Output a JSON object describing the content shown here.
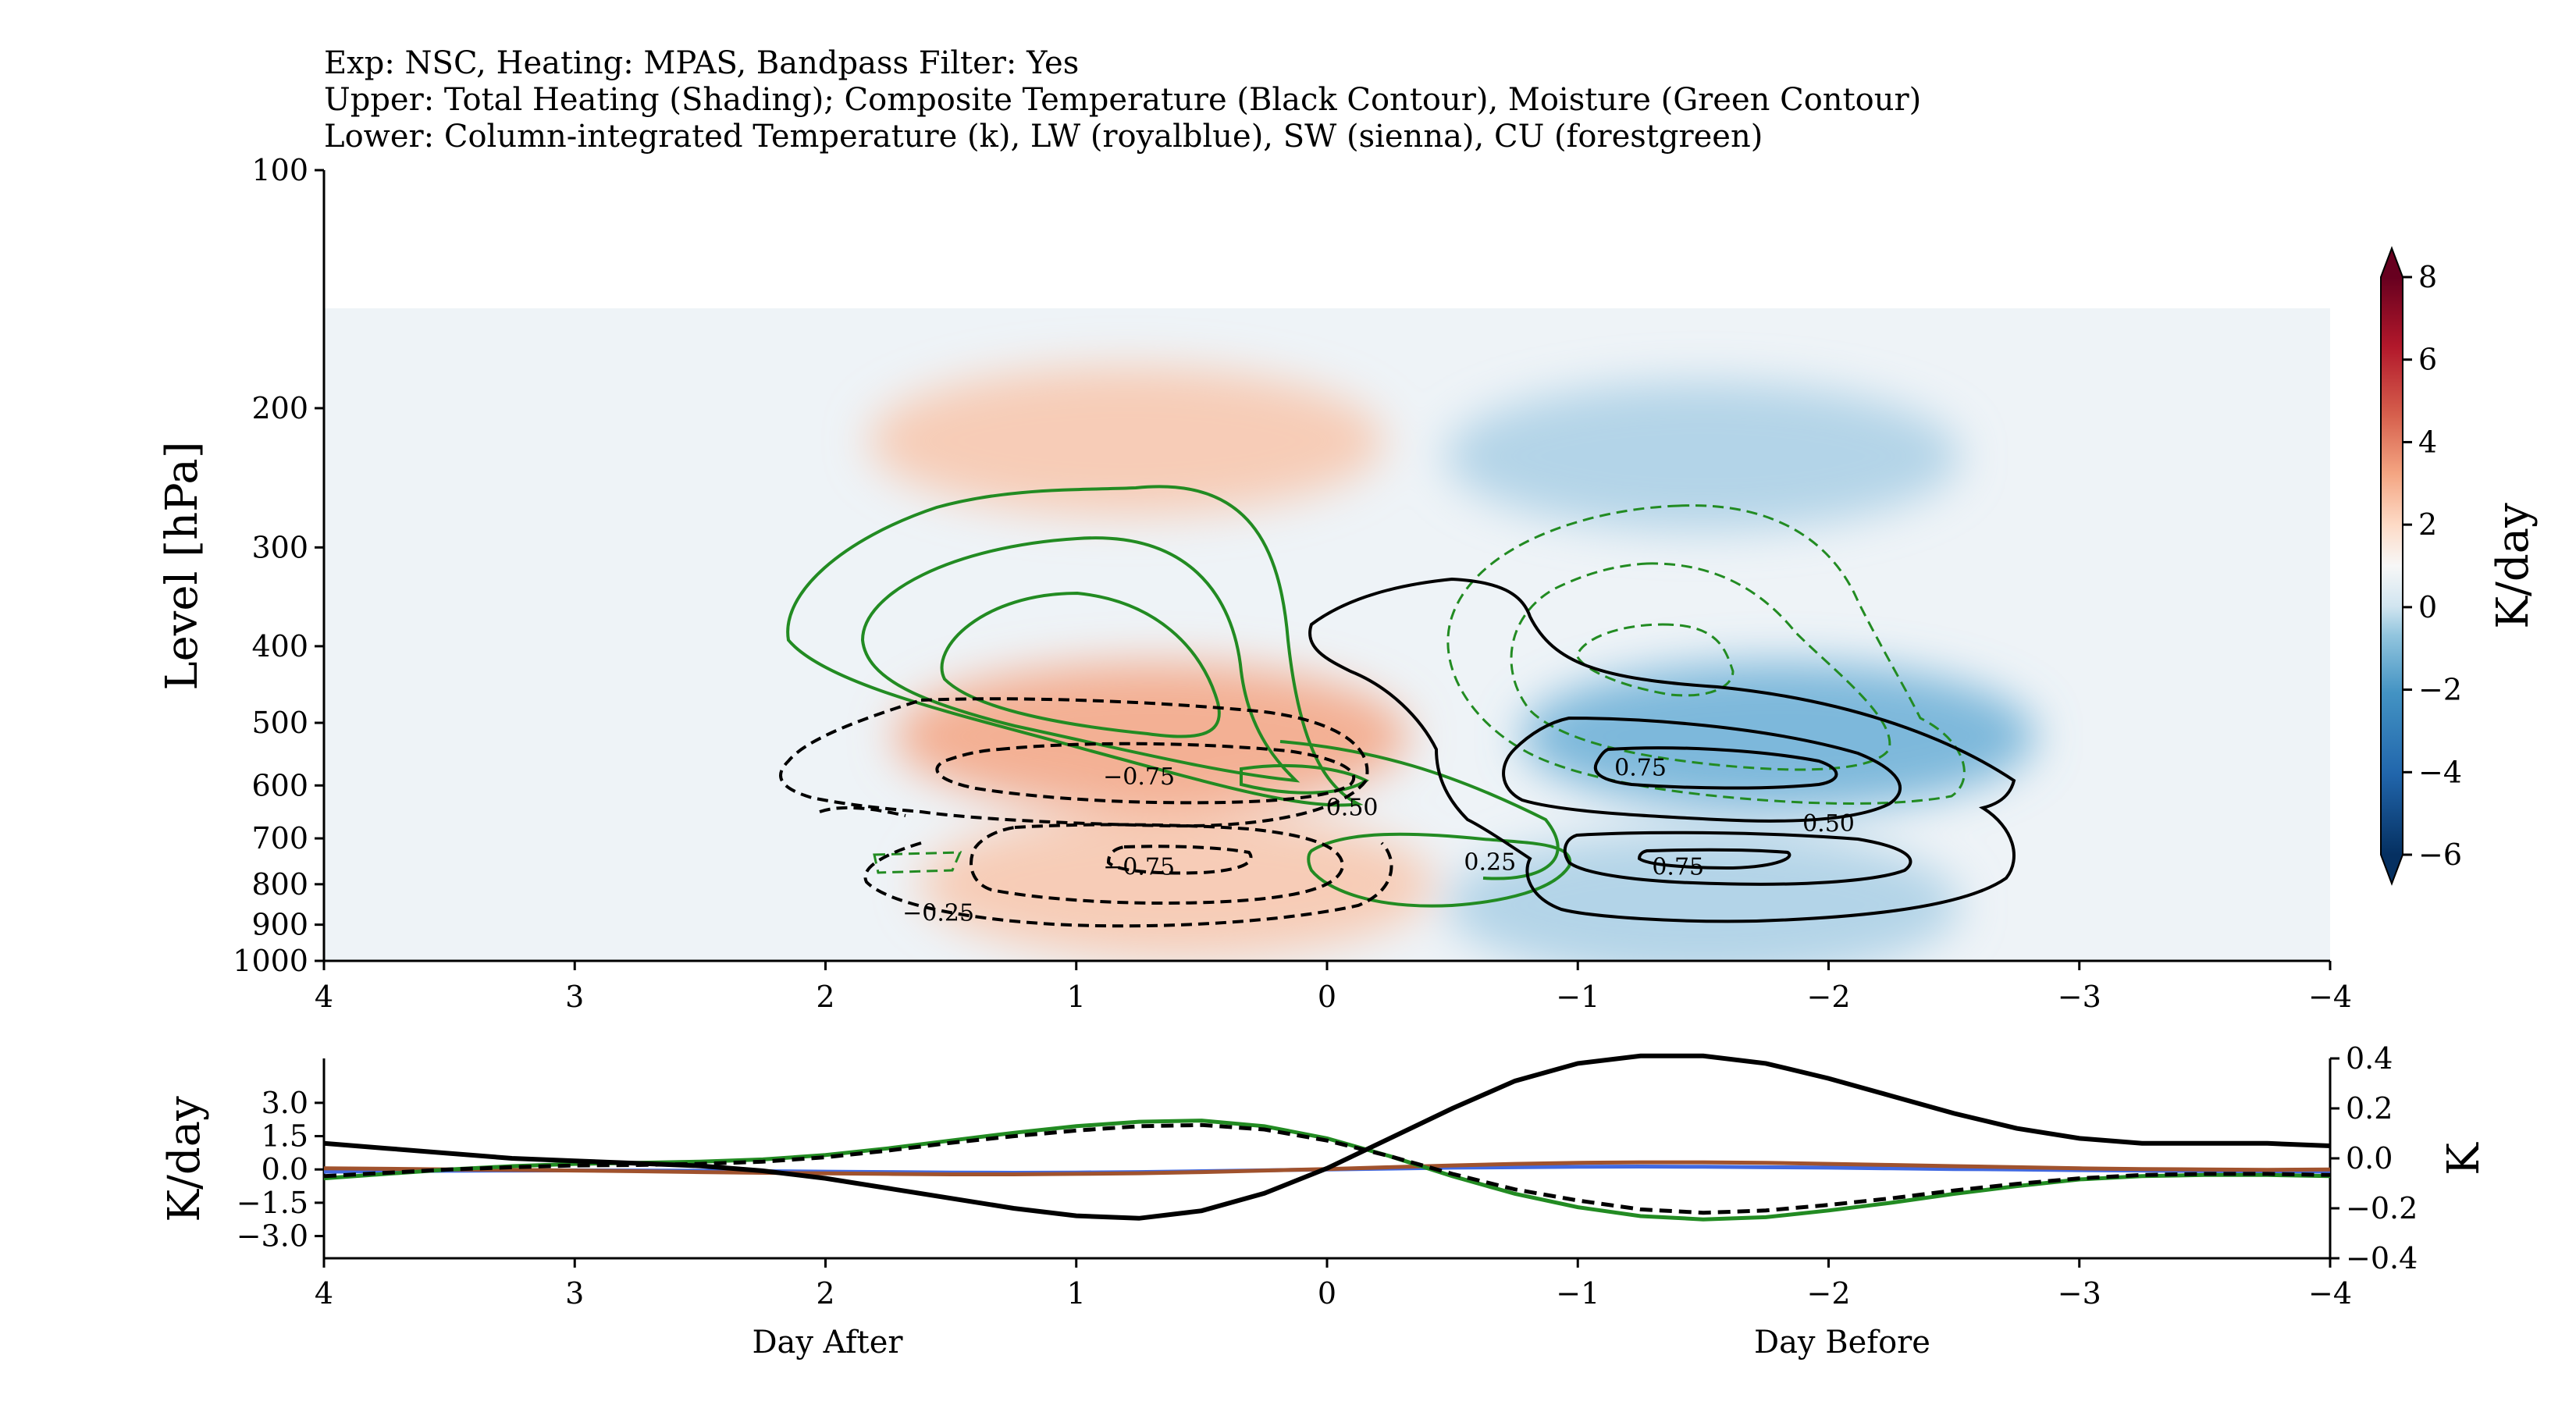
{
  "title_lines": [
    "Exp: NSC, Heating: MPAS, Bandpass Filter: Yes",
    "Upper: Total Heating (Shading); Composite Temperature (Black Contour), Moisture (Green Contour)",
    "Lower: Column-integrated Temperature (k), LW (royalblue), SW (sienna), CU (forestgreen)"
  ],
  "chart_data": [
    {
      "type": "heatmap",
      "name": "upper-panel",
      "ylabel": "Level [hPa]",
      "y_ticks": [
        "100",
        "200",
        "300",
        "400",
        "500",
        "600",
        "700",
        "800",
        "900",
        "1000"
      ],
      "x_ticks": [
        "4",
        "3",
        "2",
        "1",
        "0",
        "−1",
        "−2",
        "−3",
        "−4"
      ],
      "xlim": [
        4,
        -4
      ],
      "ylim": [
        1000,
        100
      ],
      "colorbar": {
        "label": "K/day",
        "ticks": [
          "8",
          "6",
          "4",
          "2",
          "0",
          "−2",
          "−4",
          "−6"
        ],
        "range": [
          -6,
          8
        ],
        "extend": "both",
        "colormap": "RdBu_r"
      },
      "heating_features": [
        {
          "kind": "warm",
          "center_day": 0.8,
          "center_hpa": 220,
          "peak": 2.0
        },
        {
          "kind": "warm",
          "center_day": 0.7,
          "center_hpa": 520,
          "peak": 2.5
        },
        {
          "kind": "warm",
          "center_day": 0.6,
          "center_hpa": 800,
          "peak": 1.5
        },
        {
          "kind": "cool",
          "center_day": -1.5,
          "center_hpa": 230,
          "peak": -2.0
        },
        {
          "kind": "cool",
          "center_day": -1.8,
          "center_hpa": 520,
          "peak": -3.0
        },
        {
          "kind": "cool",
          "center_day": -1.5,
          "center_hpa": 850,
          "peak": -1.5
        }
      ],
      "contour_labels": [
        {
          "text": "−0.75",
          "day": 0.75,
          "hpa": 585
        },
        {
          "text": "0.50",
          "day": -0.1,
          "hpa": 640
        },
        {
          "text": "−0.75",
          "day": 0.75,
          "hpa": 760
        },
        {
          "text": "−0.25",
          "day": 1.55,
          "hpa": 870
        },
        {
          "text": "0.25",
          "day": -0.65,
          "hpa": 750
        },
        {
          "text": "0.75",
          "day": -1.25,
          "hpa": 570
        },
        {
          "text": "0.50",
          "day": -2.0,
          "hpa": 670
        },
        {
          "text": "0.75",
          "day": -1.4,
          "hpa": 760
        }
      ]
    },
    {
      "type": "line",
      "name": "lower-panel",
      "ylabel_left": "K/day",
      "ylabel_right": "K",
      "y_ticks_left": [
        "3.0",
        "1.5",
        "0.0",
        "−1.5",
        "−3.0"
      ],
      "y_ticks_right": [
        "0.4",
        "0.2",
        "0.0",
        "−0.2",
        "−0.4"
      ],
      "x_ticks": [
        "4",
        "3",
        "2",
        "1",
        "0",
        "−1",
        "−2",
        "−3",
        "−4"
      ],
      "xlabel_left": "Day After",
      "xlabel_right": "Day Before",
      "xlim": [
        4,
        -4
      ],
      "ylim_left": [
        -4.0,
        5.0
      ],
      "ylim_right": [
        -0.4,
        0.4
      ],
      "x": [
        4,
        3.75,
        3.5,
        3.25,
        3,
        2.75,
        2.5,
        2.25,
        2,
        1.75,
        1.5,
        1.25,
        1,
        0.75,
        0.5,
        0.25,
        0,
        -0.25,
        -0.5,
        -0.75,
        -1,
        -1.25,
        -1.5,
        -1.75,
        -2,
        -2.25,
        -2.5,
        -2.75,
        -3,
        -3.25,
        -3.5,
        -3.75,
        -4
      ],
      "series": [
        {
          "name": "",
          "color": "#4169e1",
          "axis": "left",
          "values": [
            -0.1,
            -0.08,
            -0.06,
            -0.05,
            -0.04,
            -0.05,
            -0.06,
            -0.08,
            -0.1,
            -0.12,
            -0.14,
            -0.15,
            -0.14,
            -0.12,
            -0.08,
            -0.04,
            0.0,
            0.04,
            0.08,
            0.1,
            0.12,
            0.13,
            0.12,
            0.1,
            0.08,
            0.05,
            0.02,
            0.0,
            -0.03,
            -0.05,
            -0.07,
            -0.08,
            -0.1
          ]
        },
        {
          "name": "",
          "color": "#a0522d",
          "axis": "left",
          "values": [
            0.05,
            0.03,
            0.0,
            -0.02,
            -0.05,
            -0.08,
            -0.12,
            -0.15,
            -0.18,
            -0.2,
            -0.22,
            -0.22,
            -0.2,
            -0.17,
            -0.12,
            -0.05,
            0.02,
            0.1,
            0.18,
            0.25,
            0.3,
            0.32,
            0.32,
            0.3,
            0.25,
            0.2,
            0.15,
            0.1,
            0.05,
            0.02,
            0.0,
            -0.02,
            0.0
          ]
        },
        {
          "name": "",
          "color": "#228b22",
          "axis": "left",
          "values": [
            -0.4,
            -0.2,
            0.0,
            0.15,
            0.25,
            0.3,
            0.35,
            0.45,
            0.65,
            0.95,
            1.3,
            1.65,
            1.95,
            2.15,
            2.2,
            1.95,
            1.4,
            0.6,
            -0.3,
            -1.1,
            -1.7,
            -2.1,
            -2.25,
            -2.15,
            -1.85,
            -1.5,
            -1.1,
            -0.75,
            -0.45,
            -0.3,
            -0.25,
            -0.25,
            -0.3
          ]
        },
        {
          "name": "",
          "color": "#000000",
          "axis": "left",
          "dashed": true,
          "values": [
            -0.3,
            -0.15,
            0.0,
            0.1,
            0.18,
            0.2,
            0.25,
            0.35,
            0.55,
            0.85,
            1.2,
            1.5,
            1.75,
            1.95,
            2.0,
            1.8,
            1.3,
            0.6,
            -0.2,
            -0.9,
            -1.4,
            -1.8,
            -1.95,
            -1.85,
            -1.6,
            -1.3,
            -0.95,
            -0.65,
            -0.4,
            -0.25,
            -0.2,
            -0.2,
            -0.25
          ]
        },
        {
          "name": "",
          "color": "#000000",
          "axis": "right",
          "values": [
            0.06,
            0.04,
            0.02,
            0.0,
            -0.01,
            -0.02,
            -0.03,
            -0.05,
            -0.08,
            -0.12,
            -0.16,
            -0.2,
            -0.23,
            -0.24,
            -0.21,
            -0.14,
            -0.04,
            0.08,
            0.2,
            0.31,
            0.38,
            0.41,
            0.41,
            0.38,
            0.32,
            0.25,
            0.18,
            0.12,
            0.08,
            0.06,
            0.06,
            0.06,
            0.05
          ]
        }
      ]
    }
  ]
}
